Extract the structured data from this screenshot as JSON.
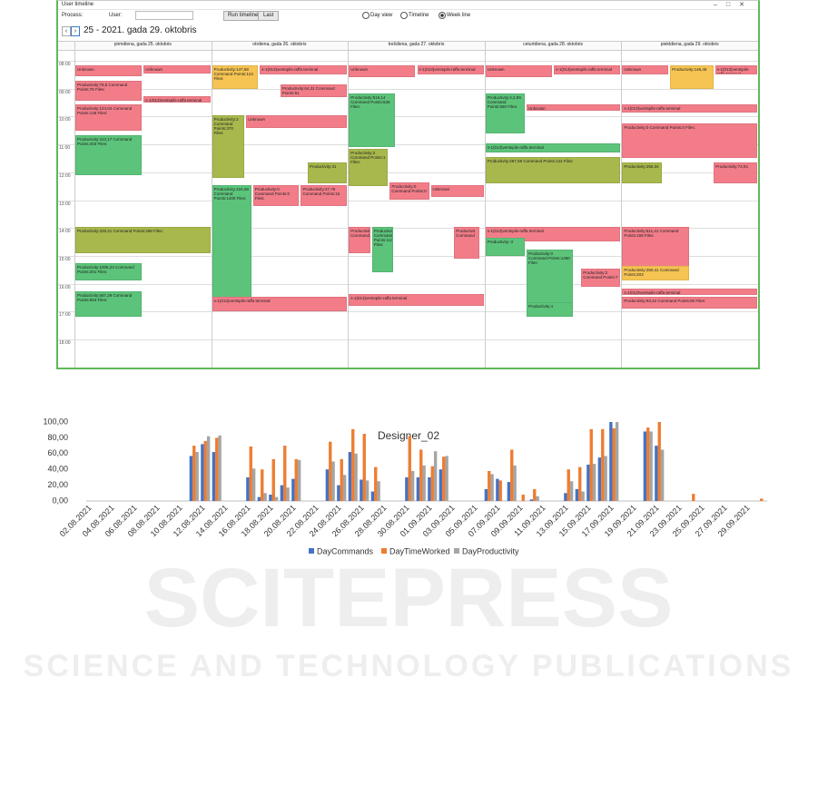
{
  "screenshot": {
    "window_title": "User timeline",
    "process_label": "Process:",
    "user_label": "User:",
    "run_button": "Run timeline",
    "last_button": "Last",
    "views": [
      "Day view",
      "Timeline",
      "Week line"
    ],
    "date_range": "25 - 2021. gada 29. oktobris",
    "hours": [
      "08:00",
      "09:00",
      "10:00",
      "11:00",
      "12:00",
      "13:00",
      "14:00",
      "15:00",
      "16:00",
      "17:00",
      "18:00"
    ],
    "days": [
      {
        "header": "pirmdiena, gada 25. oktobris",
        "events": [
          {
            "text": "Unknown",
            "color": "#f27d89"
          },
          {
            "text": "Unknown",
            "color": "#f27d89"
          },
          {
            "text": "Productivity:76,5 Command Points:76 Files:",
            "color": "#f27d89"
          },
          {
            "text": "s-1(013)ventspils-raffa terminal",
            "color": "#f27d89"
          },
          {
            "text": "Productivity:124,04 Command Points:136 Files:",
            "color": "#f27d89"
          },
          {
            "text": "Productivity:413,17 Command Points:403 Files:",
            "color": "#5cc47a"
          },
          {
            "text": "Productivity:225,21 Command Points:268 Files:",
            "color": "#a9b84c"
          },
          {
            "text": "Productivity:1005,23 Command Points:201 Files:",
            "color": "#5cc47a"
          },
          {
            "text": "Productivity:667,29 Command Points:653 Files:",
            "color": "#5cc47a"
          }
        ]
      },
      {
        "header": "otrdiena, gada 26. oktobris",
        "events": [
          {
            "text": "Productivity:147,58 Command Points:124 Files:",
            "color": "#f6c453"
          },
          {
            "text": "s-1(013)ventspils-raffa terminal",
            "color": "#f27d89"
          },
          {
            "text": "Productivity:64,31 Command Points:51",
            "color": "#f27d89"
          },
          {
            "text": "Productivity:2 Command Points:370 Files:",
            "color": "#a9b84c"
          },
          {
            "text": "Unknown",
            "color": "#f27d89"
          },
          {
            "text": "Productivity:31",
            "color": "#a9b84c"
          },
          {
            "text": "Productivity:424,08 Command Points:1400 Files:",
            "color": "#5cc47a"
          },
          {
            "text": "Productivity:0 Command Points:0 Files:",
            "color": "#f27d89"
          },
          {
            "text": "Productivity:27,76 Command Points:15",
            "color": "#f27d89"
          },
          {
            "text": "s-1(013)ventspils-raffa terminal",
            "color": "#f27d89"
          }
        ]
      },
      {
        "header": "trešdiena, gada 27. oktobris",
        "events": [
          {
            "text": "Unknown",
            "color": "#f27d89"
          },
          {
            "text": "s-1(013)ventspils-raffa terminal",
            "color": "#f27d89"
          },
          {
            "text": "Productivity:516,14 Command Points:536 Files:",
            "color": "#5cc47a"
          },
          {
            "text": "Productivity:2 Command Points:1 Files:",
            "color": "#a9b84c"
          },
          {
            "text": "Productivity:0 Command Points:0",
            "color": "#f27d89"
          },
          {
            "text": "Unknown",
            "color": "#f27d89"
          },
          {
            "text": "Productivit Command",
            "color": "#f27d89"
          },
          {
            "text": "Productivit Command Points:113 Files:",
            "color": "#5cc47a"
          },
          {
            "text": "Productivit Command",
            "color": "#f27d89"
          },
          {
            "text": "s-1(013)ventspils-raffa terminal",
            "color": "#f27d89"
          }
        ]
      },
      {
        "header": "ceturtdiena, gada 28. oktobris",
        "events": [
          {
            "text": "Unknown",
            "color": "#f27d89"
          },
          {
            "text": "s-1(013)ventspils-raffa terminal",
            "color": "#f27d89"
          },
          {
            "text": "Productivity:4,2,99 Command Points:650 Files:",
            "color": "#5cc47a"
          },
          {
            "text": "Unknown",
            "color": "#f27d89"
          },
          {
            "text": "s-1(013)ventspils-raffa terminal",
            "color": "#5cc47a"
          },
          {
            "text": "Productivity:297,69 Command Points:144 Files:",
            "color": "#a9b84c"
          },
          {
            "text": "s-1(013)ventspils-raffa terminal",
            "color": "#f27d89"
          },
          {
            "text": "Productivity:-2",
            "color": "#5cc47a"
          },
          {
            "text": "Productivity:0 Command Points:1480 Files:",
            "color": "#5cc47a"
          },
          {
            "text": "Productivity:2 Command Points:7",
            "color": "#f27d89"
          },
          {
            "text": "Productivity:4",
            "color": "#5cc47a"
          }
        ]
      },
      {
        "header": "piektdiena, gada 29. oktobris",
        "events": [
          {
            "text": "Unknown",
            "color": "#f27d89"
          },
          {
            "text": "Productivity:146,48",
            "color": "#f6c453"
          },
          {
            "text": "s-1(013)ventspils-raffa terminal",
            "color": "#f27d89"
          },
          {
            "text": "s-1(013)ventspils-raffa terminal",
            "color": "#f27d89"
          },
          {
            "text": "Productivity:0 Command Points:0 Files:",
            "color": "#f27d89"
          },
          {
            "text": "Productivity:256,34",
            "color": "#a9b84c"
          },
          {
            "text": "Productivity:72,81",
            "color": "#f27d89"
          },
          {
            "text": "Productivity:511,41 Command Points:159 Files:",
            "color": "#f27d89"
          },
          {
            "text": "Productivity:250,41 Command Points:203",
            "color": "#f6c453"
          },
          {
            "text": "s-1(013)ventspils-raffa terminal",
            "color": "#f27d89"
          },
          {
            "text": "Productivity:93,42 Command Points:80 Files:",
            "color": "#f27d89"
          }
        ]
      }
    ]
  },
  "chart_data": {
    "type": "bar",
    "title": "Designer_02",
    "categories": [
      "02.08.2021",
      null,
      "04.08.2021",
      null,
      "06.08.2021",
      null,
      "08.08.2021",
      null,
      "10.08.2021",
      null,
      "12.08.2021",
      null,
      "14.08.2021",
      null,
      "16.08.2021",
      null,
      "18.08.2021",
      null,
      "20.08.2021",
      null,
      "22.08.2021",
      null,
      "24.08.2021",
      null,
      "26.08.2021",
      null,
      "28.08.2021",
      null,
      "30.08.2021",
      null,
      "01.09.2021",
      null,
      "03.09.2021",
      null,
      "05.09.2021",
      null,
      "07.09.2021",
      null,
      "09.09.2021",
      null,
      "11.09.2021",
      null,
      "13.09.2021",
      null,
      "15.09.2021",
      null,
      "17.09.2021",
      null,
      "19.09.2021",
      null,
      "21.09.2021",
      null,
      "23.09.2021",
      null,
      "25.09.2021",
      null,
      "27.09.2021",
      null,
      "29.09.2021",
      null
    ],
    "series": [
      {
        "name": "DayCommands",
        "color": "#4472c4",
        "values": [
          0,
          0,
          0,
          0,
          0,
          0,
          0,
          0,
          0,
          57,
          72,
          62,
          0,
          0,
          30,
          5,
          8,
          20,
          28,
          0,
          0,
          40,
          20,
          62,
          27,
          12,
          0,
          0,
          30,
          30,
          30,
          40,
          0,
          0,
          0,
          15,
          28,
          24,
          0,
          2,
          0,
          0,
          10,
          15,
          46,
          55,
          100,
          0,
          0,
          88,
          70,
          0,
          0,
          0,
          0,
          0,
          0,
          0,
          0,
          0
        ]
      },
      {
        "name": "DayTimeWorked",
        "color": "#ed7d31",
        "values": [
          0,
          0,
          0,
          0,
          0,
          0,
          0,
          0,
          0,
          70,
          76,
          80,
          0,
          0,
          69,
          40,
          53,
          70,
          53,
          0,
          0,
          75,
          53,
          91,
          85,
          43,
          0,
          0,
          82,
          65,
          44,
          56,
          0,
          0,
          0,
          38,
          26,
          65,
          8,
          15,
          0,
          0,
          40,
          43,
          91,
          91,
          92,
          0,
          0,
          93,
          100,
          0,
          0,
          9,
          0,
          0,
          0,
          0,
          0,
          3
        ]
      },
      {
        "name": "DayProductivity",
        "color": "#a5a5a5",
        "values": [
          0,
          0,
          0,
          0,
          0,
          0,
          0,
          0,
          0,
          62,
          82,
          83,
          0,
          0,
          41,
          10,
          5,
          17,
          52,
          0,
          0,
          50,
          33,
          60,
          26,
          25,
          0,
          0,
          38,
          45,
          63,
          57,
          0,
          0,
          0,
          34,
          0,
          45,
          0,
          6,
          0,
          0,
          25,
          12,
          47,
          57,
          100,
          0,
          0,
          88,
          65,
          0,
          0,
          0,
          0,
          0,
          0,
          0,
          0,
          0
        ]
      }
    ],
    "ylim": [
      0,
      100
    ],
    "yticks": [
      {
        "value": 0,
        "label": "0,00"
      },
      {
        "value": 20,
        "label": "20,00"
      },
      {
        "value": 40,
        "label": "40,00"
      },
      {
        "value": 60,
        "label": "60,00"
      },
      {
        "value": 80,
        "label": "80,00"
      },
      {
        "value": 100,
        "label": "100,00"
      }
    ],
    "grid": false,
    "legend": "bottom"
  },
  "watermark": {
    "line1": "SCITEPRESS",
    "line2": "SCIENCE AND TECHNOLOGY PUBLICATIONS"
  }
}
